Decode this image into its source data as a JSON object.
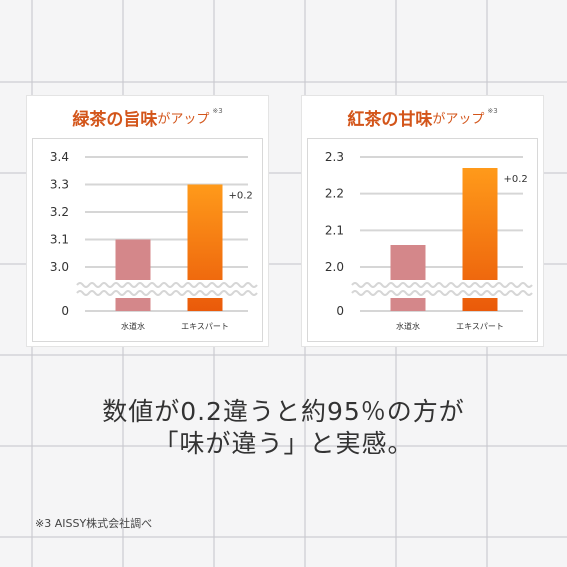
{
  "charts": {
    "left": {
      "title_main_1": "緑茶の旨味",
      "title_sub": "がアップ",
      "title_note": "※3"
    },
    "right": {
      "title_main_1": "紅茶の甘味",
      "title_sub": "がアップ",
      "title_note": "※3"
    }
  },
  "chart_data": [
    {
      "type": "bar",
      "title": "緑茶の旨味がアップ",
      "categories": [
        "水道水",
        "エキスパート"
      ],
      "values": [
        3.1,
        3.3
      ],
      "bar_colors": [
        "#d4878a",
        "#f07a10"
      ],
      "yticks": [
        "3.4",
        "3.3",
        "3.2",
        "3.1",
        "3.0",
        "0"
      ],
      "ylim": [
        3.0,
        3.4
      ],
      "axis_break": true,
      "annotations": [
        "+0.2"
      ]
    },
    {
      "type": "bar",
      "title": "紅茶の甘味がアップ",
      "categories": [
        "水道水",
        "エキスパート"
      ],
      "values": [
        2.06,
        2.27
      ],
      "bar_colors": [
        "#d4878a",
        "#f07a10"
      ],
      "yticks": [
        "2.3",
        "2.2",
        "2.1",
        "2.0",
        "0"
      ],
      "ylim": [
        2.0,
        2.3
      ],
      "axis_break": true,
      "annotations": [
        "+0.2"
      ]
    }
  ],
  "headline": {
    "line1": "数値が0.2違うと約95％の方が",
    "line2": "「味が違う」と実感。"
  },
  "footnote": "※3 AISSY株式会社調べ",
  "colors": {
    "accent": "#d3551a",
    "bar_tap": "#d4878a",
    "bar_expert": "#f07a10",
    "background": "#f5f5f6"
  }
}
